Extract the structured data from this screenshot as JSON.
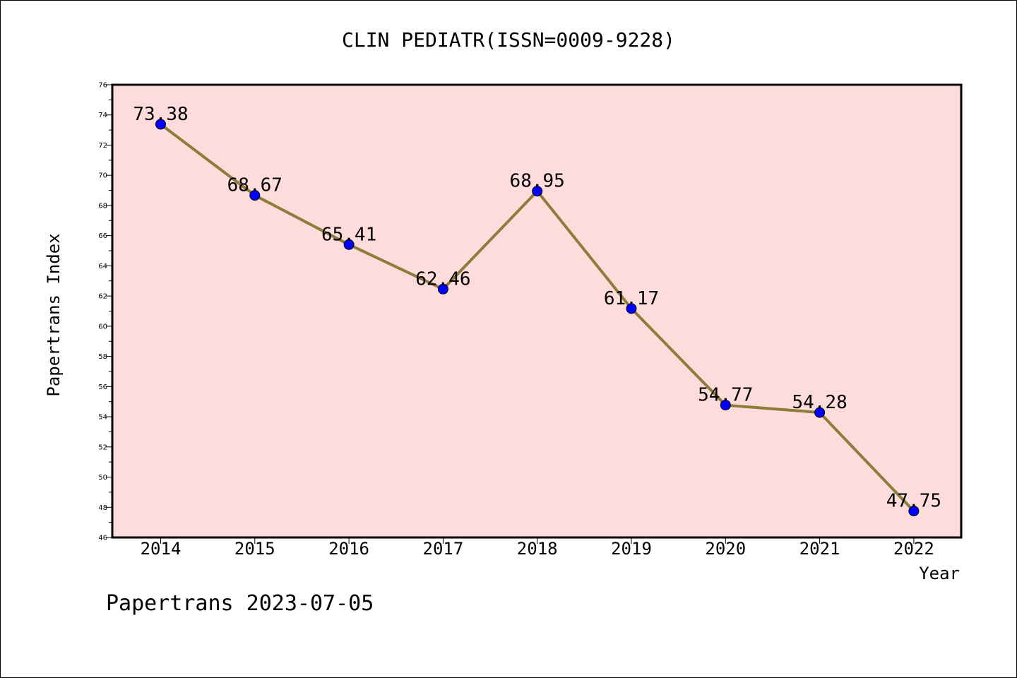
{
  "chart_data": {
    "type": "line",
    "title": "CLIN PEDIATR(ISSN=0009-9228)",
    "xlabel": "Year",
    "ylabel": "Papertrans Index",
    "x": [
      "2014",
      "2015",
      "2016",
      "2017",
      "2018",
      "2019",
      "2020",
      "2021",
      "2022"
    ],
    "series": [
      {
        "values": [
          73.38,
          68.67,
          65.41,
          62.46,
          68.95,
          61.17,
          54.77,
          54.28,
          47.75
        ],
        "labels": [
          "73.38",
          "68.67",
          "65.41",
          "62.46",
          "68.95",
          "61.17",
          "54.77",
          "54.28",
          "47.75"
        ],
        "line_color": "#8b7d3a",
        "marker_color": "#0000ff"
      }
    ],
    "ylim": [
      46,
      76
    ],
    "yticks": [
      "46",
      "48",
      "50",
      "52",
      "54",
      "56",
      "58",
      "60",
      "62",
      "64",
      "66",
      "68",
      "70",
      "72",
      "74",
      "76"
    ],
    "plot_background": "#ffdcdc",
    "grid": false,
    "legend": "none"
  },
  "footer": {
    "text": "Papertrans 2023-07-05"
  }
}
